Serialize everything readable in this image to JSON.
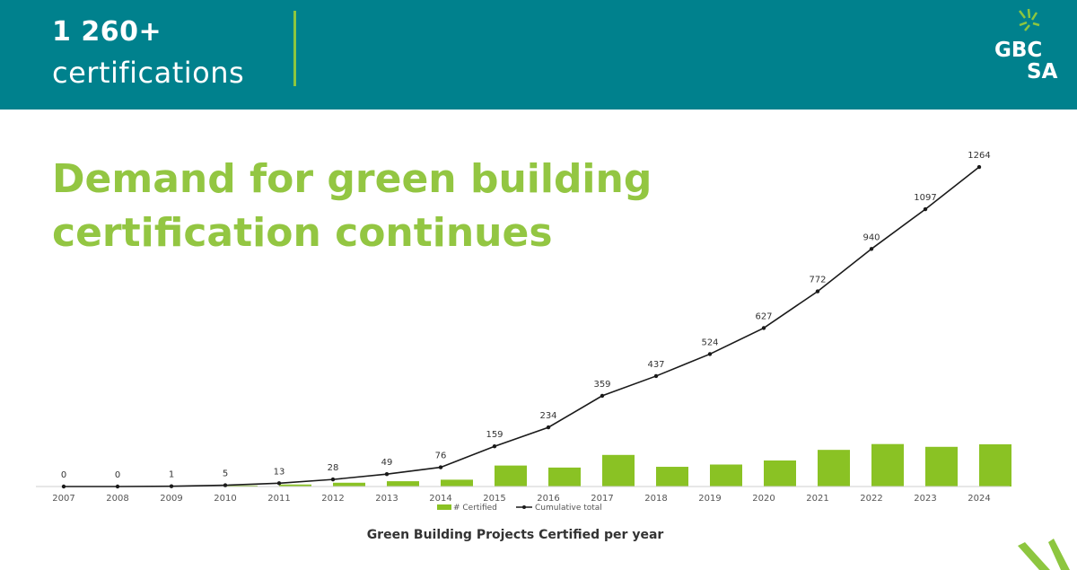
{
  "header": {
    "stat_number": "1 260+",
    "stat_label": "certifications",
    "logo_line1": "GBC",
    "logo_line2": "SA"
  },
  "headline": "Demand for green building certification continues",
  "colors": {
    "header_bg": "#00818d",
    "accent_green": "#8dc63f",
    "headline_green": "#93c642",
    "bar_green": "#8ac224",
    "line": "#1a1a1a"
  },
  "chart_data": {
    "type": "bar",
    "title": "Green Building Projects Certified per year",
    "categories": [
      "2007",
      "2008",
      "2009",
      "2010",
      "2011",
      "2012",
      "2013",
      "2014",
      "2015",
      "2016",
      "2017",
      "2018",
      "2019",
      "2020",
      "2021",
      "2022",
      "2023",
      "2024"
    ],
    "series": [
      {
        "name": "# Certified",
        "type": "bar",
        "values": [
          0,
          0,
          1,
          4,
          8,
          15,
          21,
          27,
          83,
          75,
          125,
          78,
          87,
          103,
          145,
          168,
          157,
          167
        ]
      },
      {
        "name": "Cumulative total",
        "type": "line",
        "values": [
          0,
          0,
          1,
          5,
          13,
          28,
          49,
          76,
          159,
          234,
          359,
          437,
          524,
          627,
          772,
          940,
          1097,
          1264
        ],
        "labels": [
          "0",
          "0",
          "1",
          "5",
          "13",
          "28",
          "49",
          "76",
          "159",
          "234",
          "359",
          "437",
          "524",
          "627",
          "772",
          "940",
          "1097",
          "1264"
        ]
      }
    ],
    "ylim": [
      0,
      1350
    ],
    "grid": false,
    "legend": "bottom-center"
  }
}
